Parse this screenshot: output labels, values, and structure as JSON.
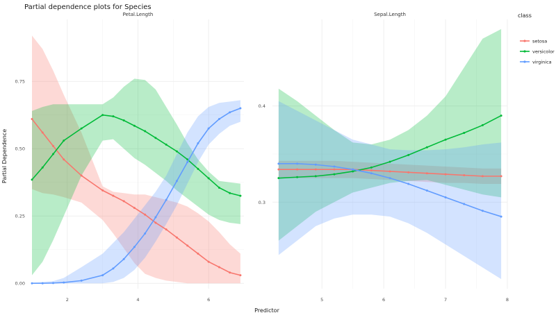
{
  "chart_data": {
    "type": "line",
    "title": "Partial dependence plots for Species",
    "xlabel": "Predictor",
    "ylabel": "Partial Dependence",
    "legend": {
      "title": "class",
      "placement": "right",
      "entries": [
        {
          "name": "setosa",
          "color": "#F8766D"
        },
        {
          "name": "versicolor",
          "color": "#00BA38"
        },
        {
          "name": "virginica",
          "color": "#619CFF"
        }
      ]
    },
    "grid": true,
    "facets": [
      {
        "label": "Petal.Length",
        "xlim": [
          1.0,
          7.0
        ],
        "ylim": [
          -0.02,
          0.98
        ],
        "xticks": [
          2,
          4,
          6
        ],
        "yticks": [
          0.0,
          0.25,
          0.5,
          0.75
        ],
        "ytick_labels": [
          "0.00",
          "0.25",
          "0.50",
          "0.75"
        ],
        "series": [
          {
            "name": "setosa",
            "x": [
              1.0,
              1.3,
              1.6,
              1.9,
              2.4,
              3.0,
              3.3,
              3.6,
              3.9,
              4.2,
              4.5,
              4.8,
              5.1,
              5.4,
              5.7,
              6.0,
              6.3,
              6.6,
              6.9
            ],
            "y": [
              0.61,
              0.56,
              0.51,
              0.46,
              0.4,
              0.345,
              0.325,
              0.305,
              0.28,
              0.255,
              0.225,
              0.2,
              0.17,
              0.14,
              0.11,
              0.08,
              0.06,
              0.04,
              0.03
            ],
            "lower": [
              0.35,
              0.335,
              0.33,
              0.32,
              0.3,
              0.235,
              0.185,
              0.13,
              0.075,
              0.035,
              0.02,
              0.01,
              0.005,
              0.0,
              0.0,
              0.0,
              0.0,
              0.0,
              0.0
            ],
            "upper": [
              0.92,
              0.87,
              0.79,
              0.7,
              0.56,
              0.36,
              0.34,
              0.335,
              0.33,
              0.33,
              0.32,
              0.31,
              0.3,
              0.285,
              0.26,
              0.23,
              0.19,
              0.145,
              0.11
            ]
          },
          {
            "name": "versicolor",
            "x": [
              1.0,
              1.3,
              1.6,
              1.9,
              2.4,
              3.0,
              3.3,
              3.6,
              3.9,
              4.2,
              4.5,
              4.8,
              5.1,
              5.4,
              5.7,
              6.0,
              6.3,
              6.6,
              6.9
            ],
            "y": [
              0.385,
              0.43,
              0.48,
              0.53,
              0.575,
              0.625,
              0.62,
              0.605,
              0.585,
              0.565,
              0.54,
              0.515,
              0.49,
              0.46,
              0.425,
              0.39,
              0.355,
              0.335,
              0.325
            ],
            "lower": [
              0.03,
              0.08,
              0.16,
              0.25,
              0.4,
              0.53,
              0.535,
              0.5,
              0.465,
              0.44,
              0.41,
              0.38,
              0.345,
              0.315,
              0.285,
              0.255,
              0.235,
              0.225,
              0.22
            ],
            "upper": [
              0.64,
              0.655,
              0.665,
              0.665,
              0.665,
              0.665,
              0.69,
              0.73,
              0.76,
              0.755,
              0.72,
              0.655,
              0.59,
              0.52,
              0.46,
              0.415,
              0.38,
              0.375,
              0.37
            ]
          },
          {
            "name": "virginica",
            "x": [
              1.0,
              1.3,
              1.6,
              1.9,
              2.4,
              3.0,
              3.3,
              3.6,
              3.9,
              4.2,
              4.5,
              4.8,
              5.1,
              5.4,
              5.7,
              6.0,
              6.3,
              6.6,
              6.9
            ],
            "y": [
              0.0,
              0.0,
              0.001,
              0.003,
              0.01,
              0.03,
              0.055,
              0.09,
              0.135,
              0.185,
              0.245,
              0.31,
              0.38,
              0.45,
              0.52,
              0.575,
              0.61,
              0.635,
              0.65
            ],
            "lower": [
              0.0,
              0.0,
              0.0,
              0.0,
              0.0,
              0.0,
              0.005,
              0.02,
              0.05,
              0.095,
              0.155,
              0.22,
              0.29,
              0.37,
              0.45,
              0.515,
              0.555,
              0.585,
              0.6
            ],
            "upper": [
              0.003,
              0.005,
              0.008,
              0.02,
              0.06,
              0.11,
              0.15,
              0.19,
              0.24,
              0.29,
              0.34,
              0.4,
              0.48,
              0.56,
              0.62,
              0.655,
              0.67,
              0.675,
              0.68
            ]
          }
        ]
      },
      {
        "label": "Sepal.Length",
        "xlim": [
          4.2,
          8.0
        ],
        "ylim": [
          0.21,
          0.49
        ],
        "xticks": [
          5,
          6,
          7,
          8
        ],
        "yticks": [
          0.3,
          0.4
        ],
        "ytick_labels": [
          "0.3",
          "0.4"
        ],
        "series": [
          {
            "name": "setosa",
            "x": [
              4.3,
              4.6,
              4.9,
              5.2,
              5.5,
              5.8,
              6.1,
              6.4,
              6.7,
              7.0,
              7.3,
              7.6,
              7.9
            ],
            "y": [
              0.334,
              0.334,
              0.334,
              0.334,
              0.334,
              0.333,
              0.332,
              0.331,
              0.33,
              0.329,
              0.328,
              0.327,
              0.327
            ],
            "lower": [
              0.325,
              0.325,
              0.325,
              0.325,
              0.325,
              0.324,
              0.323,
              0.322,
              0.321,
              0.32,
              0.32,
              0.319,
              0.319
            ],
            "upper": [
              0.343,
              0.343,
              0.343,
              0.343,
              0.342,
              0.341,
              0.34,
              0.339,
              0.338,
              0.337,
              0.336,
              0.335,
              0.335
            ]
          },
          {
            "name": "versicolor",
            "x": [
              4.3,
              4.6,
              4.9,
              5.2,
              5.5,
              5.8,
              6.1,
              6.4,
              6.7,
              7.0,
              7.3,
              7.6,
              7.9
            ],
            "y": [
              0.325,
              0.326,
              0.327,
              0.329,
              0.332,
              0.336,
              0.342,
              0.349,
              0.357,
              0.365,
              0.372,
              0.38,
              0.39
            ],
            "lower": [
              0.26,
              0.275,
              0.29,
              0.3,
              0.31,
              0.315,
              0.32,
              0.322,
              0.323,
              0.318,
              0.313,
              0.308,
              0.305
            ],
            "upper": [
              0.418,
              0.405,
              0.39,
              0.375,
              0.362,
              0.36,
              0.365,
              0.375,
              0.39,
              0.41,
              0.44,
              0.47,
              0.48
            ]
          },
          {
            "name": "virginica",
            "x": [
              4.3,
              4.6,
              4.9,
              5.2,
              5.5,
              5.8,
              6.1,
              6.4,
              6.7,
              7.0,
              7.3,
              7.6,
              7.9
            ],
            "y": [
              0.34,
              0.34,
              0.339,
              0.337,
              0.334,
              0.33,
              0.325,
              0.319,
              0.312,
              0.305,
              0.298,
              0.291,
              0.285
            ],
            "lower": [
              0.245,
              0.26,
              0.275,
              0.283,
              0.287,
              0.287,
              0.285,
              0.278,
              0.268,
              0.256,
              0.244,
              0.232,
              0.22
            ],
            "upper": [
              0.405,
              0.395,
              0.385,
              0.375,
              0.365,
              0.36,
              0.355,
              0.354,
              0.354,
              0.355,
              0.357,
              0.36,
              0.362
            ]
          }
        ]
      }
    ]
  }
}
